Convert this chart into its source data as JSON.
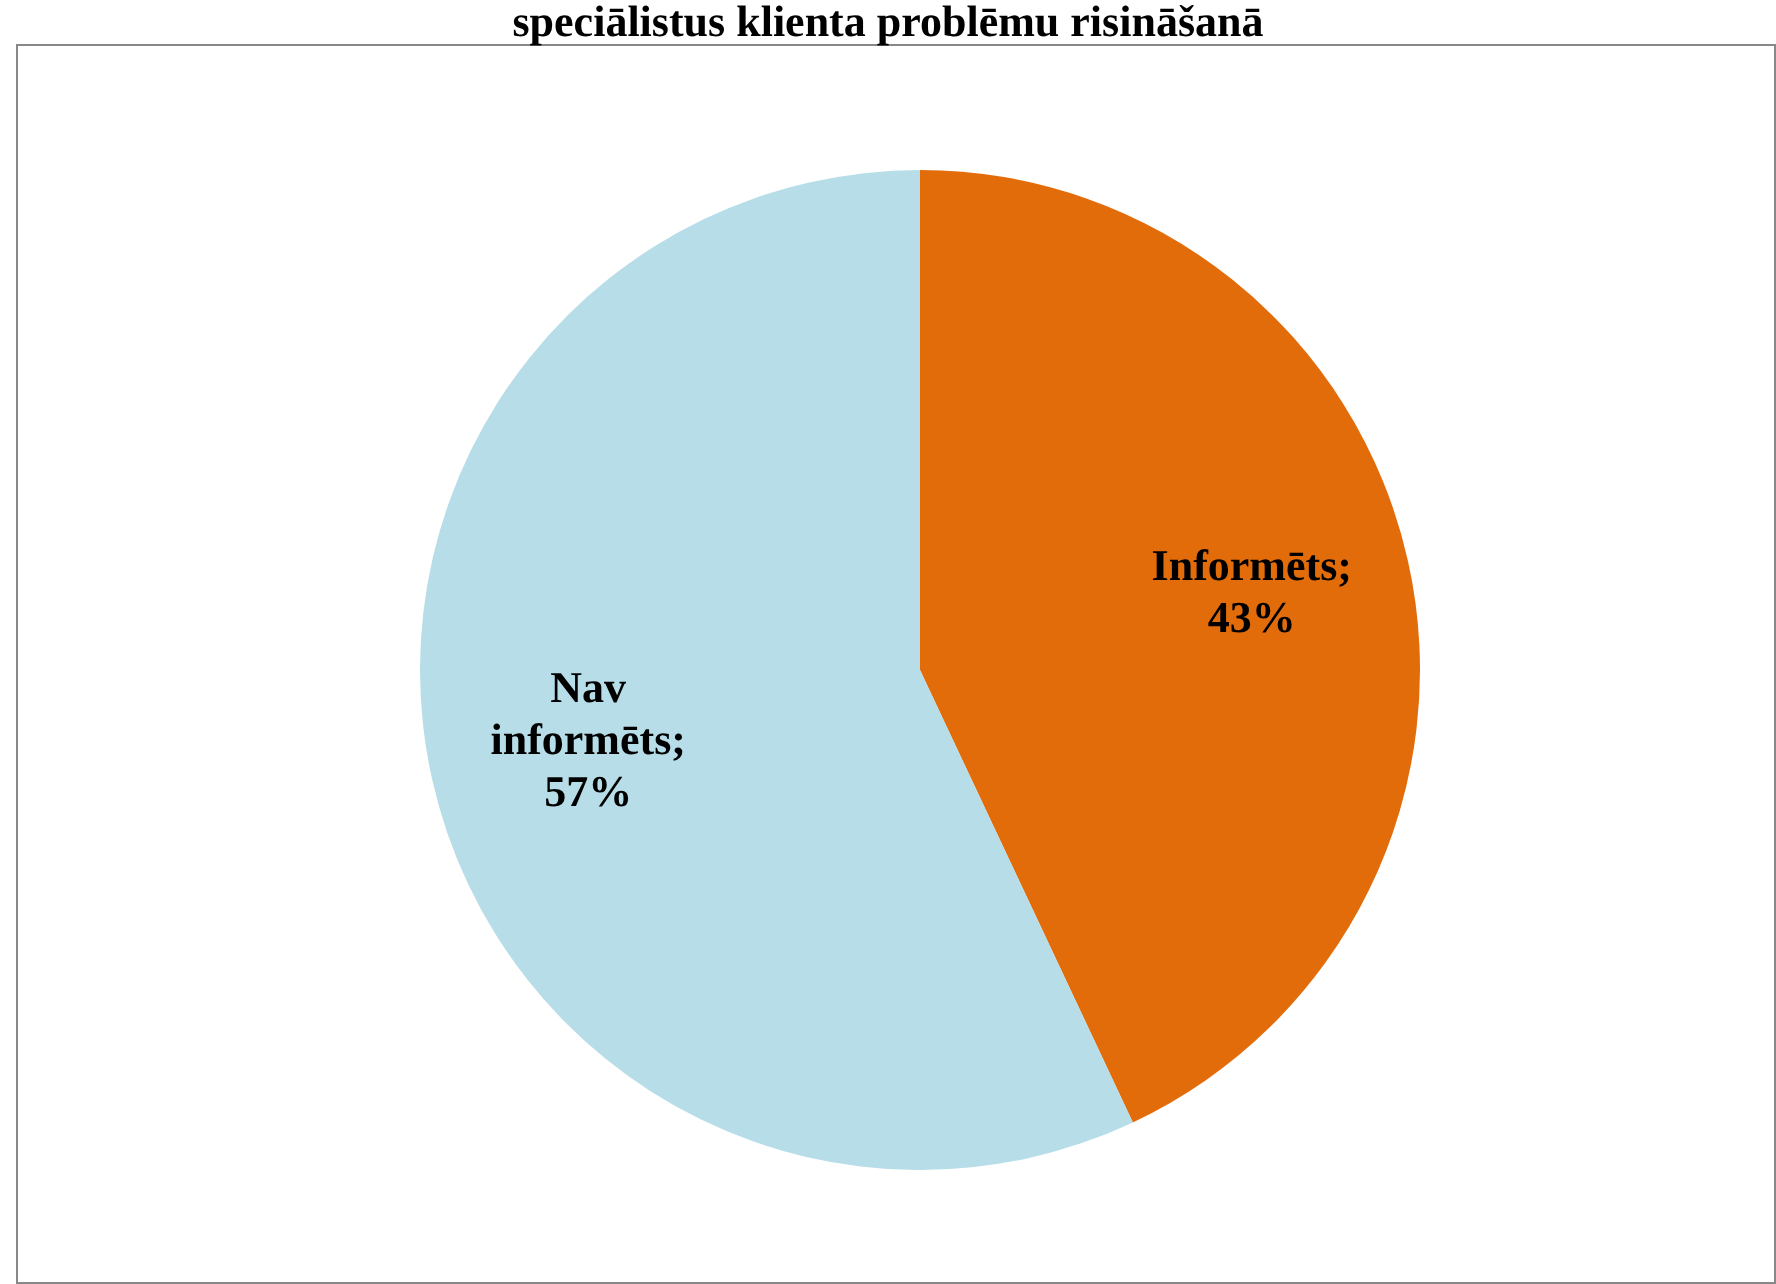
{
  "chart_data": {
    "type": "pie",
    "title": "speciālistus klienta problēmu risināšanā",
    "categories": [
      "Informēts",
      "Nav informēts"
    ],
    "values": [
      43,
      57
    ],
    "colors": [
      "#e36c0a",
      "#b7dde8"
    ],
    "value_labels": [
      "; 43%",
      "; 57%"
    ],
    "legend": false
  }
}
